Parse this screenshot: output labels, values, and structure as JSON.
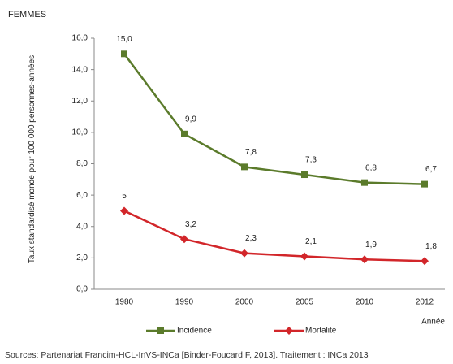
{
  "chart_data": {
    "type": "line",
    "title": "FEMMES",
    "y_label": "Taux standardisé monde pour 100 000 personnes-années",
    "x_label": "Année",
    "categories": [
      "1980",
      "1990",
      "2000",
      "2005",
      "2010",
      "2012"
    ],
    "series": [
      {
        "name": "Incidence",
        "color": "#5b7b2b",
        "marker": "square",
        "values": [
          15.0,
          9.9,
          7.8,
          7.3,
          6.8,
          6.7
        ],
        "value_labels": [
          "15,0",
          "9,9",
          "7,8",
          "7,3",
          "6,8",
          "6,7"
        ]
      },
      {
        "name": "Mortalité",
        "color": "#d2262a",
        "marker": "diamond",
        "values": [
          5,
          3.2,
          2.3,
          2.1,
          1.9,
          1.8
        ],
        "value_labels": [
          "5",
          "3,2",
          "2,3",
          "2,1",
          "1,9",
          "1,8"
        ]
      }
    ],
    "ylim": [
      0,
      16
    ],
    "yticks": [
      {
        "value": 0,
        "label": "0,0"
      },
      {
        "value": 2,
        "label": "2,0"
      },
      {
        "value": 4,
        "label": "4,0"
      },
      {
        "value": 6,
        "label": "6,0"
      },
      {
        "value": 8,
        "label": "8,0"
      },
      {
        "value": 10,
        "label": "10,0"
      },
      {
        "value": 12,
        "label": "12,0"
      },
      {
        "value": 14,
        "label": "14,0"
      },
      {
        "value": 16,
        "label": "16,0"
      }
    ],
    "grid": false,
    "legend": "bottom",
    "source": "Sources: Partenariat Francim-HCL-InVS-INCa [Binder-Foucard F, 2013]. Traitement : INCa 2013"
  }
}
